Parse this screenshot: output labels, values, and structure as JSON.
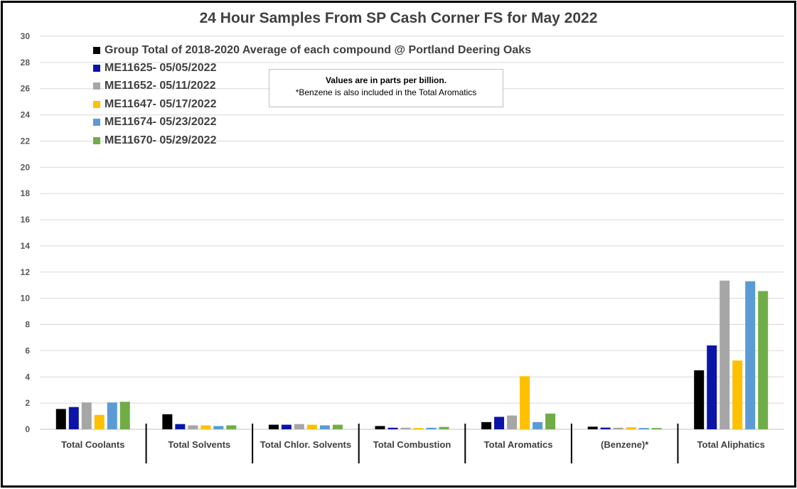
{
  "chart_data": {
    "type": "bar",
    "title": "24 Hour Samples From SP Cash Corner FS for May 2022",
    "xlabel": "",
    "ylabel": "",
    "ylim": [
      0,
      30
    ],
    "yticks": [
      0,
      2,
      4,
      6,
      8,
      10,
      12,
      14,
      16,
      18,
      20,
      22,
      24,
      26,
      28,
      30
    ],
    "grid": true,
    "legend_position": "top-left",
    "categories": [
      "Total Coolants",
      "Total Solvents",
      "Total Chlor. Solvents",
      "Total Combustion",
      "Total Aromatics",
      "(Benzene)*",
      "Total Aliphatics"
    ],
    "series": [
      {
        "name": "Group Total of 2018-2020 Average of each compound @ Portland Deering Oaks",
        "color": "#000000",
        "values": [
          1.55,
          1.15,
          0.35,
          0.25,
          0.55,
          0.2,
          4.5
        ]
      },
      {
        "name": "ME11625- 05/05/2022",
        "color": "#0a14a8",
        "values": [
          1.7,
          0.4,
          0.35,
          0.12,
          0.95,
          0.13,
          6.4
        ]
      },
      {
        "name": "ME11652- 05/11/2022",
        "color": "#a6a6a6",
        "values": [
          2.05,
          0.3,
          0.4,
          0.12,
          1.05,
          0.12,
          11.35
        ]
      },
      {
        "name": "ME11647- 05/17/2022",
        "color": "#ffc000",
        "values": [
          1.1,
          0.3,
          0.35,
          0.1,
          4.05,
          0.15,
          5.25
        ]
      },
      {
        "name": "ME11674- 05/23/2022",
        "color": "#5b9bd5",
        "values": [
          2.05,
          0.25,
          0.3,
          0.12,
          0.55,
          0.1,
          11.3
        ]
      },
      {
        "name": "ME11670- 05/29/2022",
        "color": "#70ad47",
        "values": [
          2.1,
          0.3,
          0.35,
          0.18,
          1.2,
          0.1,
          10.55
        ]
      }
    ],
    "annotation": {
      "line1": "Values are in parts per billion.",
      "line2": "*Benzene is also included in the Total Aromatics"
    }
  }
}
